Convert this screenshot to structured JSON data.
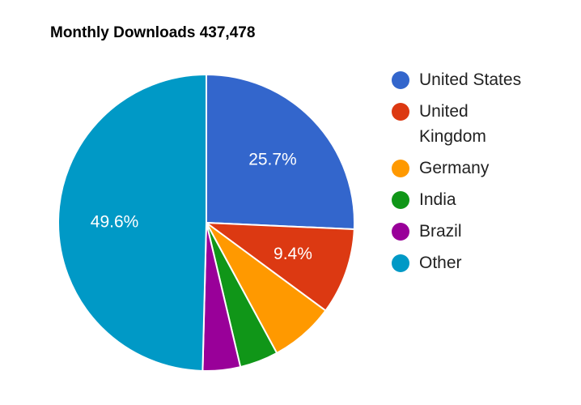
{
  "title": "Monthly Downloads 437,478",
  "chart_data": {
    "type": "pie",
    "title": "Monthly Downloads 437,478",
    "categories": [
      "United States",
      "United Kingdom",
      "Germany",
      "India",
      "Brazil",
      "Other"
    ],
    "values": [
      25.7,
      9.4,
      7.0,
      4.2,
      4.1,
      49.6
    ],
    "colors": [
      "#3366cc",
      "#dc3912",
      "#ff9900",
      "#109618",
      "#990099",
      "#0099c6"
    ],
    "slice_labels": [
      "25.7%",
      "9.4%",
      "",
      "",
      "",
      "49.6%"
    ],
    "legend_position": "right",
    "total": 437478
  },
  "legend": [
    {
      "label": "United States",
      "color": "#3366cc"
    },
    {
      "label": "United Kingdom",
      "color": "#dc3912"
    },
    {
      "label": "Germany",
      "color": "#ff9900"
    },
    {
      "label": "India",
      "color": "#109618"
    },
    {
      "label": "Brazil",
      "color": "#990099"
    },
    {
      "label": "Other",
      "color": "#0099c6"
    }
  ]
}
